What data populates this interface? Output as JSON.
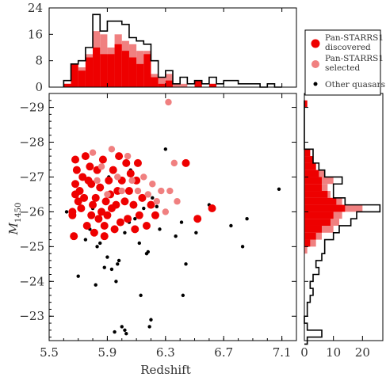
{
  "chart_data": [
    {
      "id": "top_histogram",
      "type": "bar",
      "xlabel": "",
      "ylabel": "",
      "xlim": [
        5.5,
        7.2
      ],
      "ylim": [
        0,
        24
      ],
      "yticks": [
        "0",
        "8",
        "16",
        "24"
      ],
      "bin_width": 0.05,
      "bin_left_edges": [
        5.6,
        5.65,
        5.7,
        5.75,
        5.8,
        5.85,
        5.9,
        5.95,
        6.0,
        6.05,
        6.1,
        6.15,
        6.2,
        6.25,
        6.3,
        6.35,
        6.4,
        6.45,
        6.5,
        6.55,
        6.6,
        6.65,
        6.7,
        6.75,
        6.8,
        6.85,
        6.9,
        6.95,
        7.0,
        7.05
      ],
      "series": [
        {
          "name": "Pan-STARRS1 discovered",
          "color": "#ee0000",
          "values": [
            1,
            7,
            5,
            9,
            12,
            10,
            10,
            13,
            11,
            9,
            7,
            10,
            3,
            1,
            2,
            0,
            0,
            0,
            2,
            0,
            1,
            0,
            0,
            0,
            0,
            0,
            0,
            0,
            0,
            0
          ]
        },
        {
          "name": "Pan-STARRS1 selected",
          "color": "#f08080",
          "values": [
            1,
            7,
            6,
            10,
            17,
            16,
            12,
            16,
            14,
            13,
            11,
            11,
            4,
            3,
            4,
            1,
            1,
            0,
            2,
            0,
            1,
            0,
            0,
            0,
            0,
            0,
            0,
            0,
            0,
            0
          ]
        },
        {
          "name": "Total",
          "color": "#000000",
          "values": [
            2,
            7,
            8,
            12,
            22,
            17,
            20,
            20,
            19,
            15,
            14,
            13,
            8,
            3,
            5,
            1,
            3,
            1,
            2,
            1,
            3,
            1,
            2,
            2,
            1,
            1,
            1,
            0,
            1,
            0
          ]
        }
      ]
    },
    {
      "id": "scatter",
      "type": "scatter",
      "xlabel": "Redshift",
      "ylabel": "M",
      "ylabel_subscript": "1450",
      "xlim": [
        5.5,
        7.2
      ],
      "ylim": [
        -22.3,
        -29.4
      ],
      "xticks": [
        "5.5",
        "5.9",
        "6.3",
        "6.7",
        "7.1"
      ],
      "yticks": [
        "−23",
        "−24",
        "−25",
        "−26",
        "−27",
        "−28",
        "−29"
      ],
      "series": [
        {
          "name": "Pan-STARRS1 discovered",
          "color": "#ee0000",
          "marker": "large-circle",
          "points": [
            [
              5.66,
              -25.9
            ],
            [
              5.66,
              -26.0
            ],
            [
              5.67,
              -25.3
            ],
            [
              5.68,
              -26.8
            ],
            [
              5.68,
              -27.5
            ],
            [
              5.69,
              -27.2
            ],
            [
              5.7,
              -26.3
            ],
            [
              5.71,
              -26.6
            ],
            [
              5.72,
              -26.1
            ],
            [
              5.73,
              -27.0
            ],
            [
              5.74,
              -26.4
            ],
            [
              5.75,
              -27.6
            ],
            [
              5.76,
              -25.6
            ],
            [
              5.77,
              -26.9
            ],
            [
              5.78,
              -27.3
            ],
            [
              5.79,
              -25.9
            ],
            [
              5.8,
              -26.2
            ],
            [
              5.81,
              -25.4
            ],
            [
              5.82,
              -26.4
            ],
            [
              5.83,
              -27.2
            ],
            [
              5.84,
              -25.8
            ],
            [
              5.85,
              -26.7
            ],
            [
              5.86,
              -26.0
            ],
            [
              5.87,
              -27.5
            ],
            [
              5.88,
              -25.6
            ],
            [
              5.89,
              -26.3
            ],
            [
              5.9,
              -25.9
            ],
            [
              5.91,
              -26.9
            ],
            [
              5.92,
              -26.5
            ],
            [
              5.93,
              -26.1
            ],
            [
              5.94,
              -27.2
            ],
            [
              5.95,
              -25.5
            ],
            [
              5.96,
              -26.2
            ],
            [
              5.97,
              -26.6
            ],
            [
              5.98,
              -27.6
            ],
            [
              5.99,
              -25.7
            ],
            [
              6.0,
              -26.9
            ],
            [
              6.02,
              -26.3
            ],
            [
              6.03,
              -27.4
            ],
            [
              6.04,
              -25.8
            ],
            [
              6.05,
              -26.6
            ],
            [
              6.06,
              -27.1
            ],
            [
              6.08,
              -26.2
            ],
            [
              6.09,
              -25.5
            ],
            [
              6.1,
              -26.9
            ],
            [
              6.11,
              -27.4
            ],
            [
              6.12,
              -25.9
            ],
            [
              6.14,
              -26.4
            ],
            [
              6.17,
              -25.6
            ],
            [
              6.2,
              -26.2
            ],
            [
              6.23,
              -25.9
            ],
            [
              6.52,
              -25.8
            ],
            [
              6.62,
              -26.1
            ],
            [
              6.44,
              -27.4
            ],
            [
              5.68,
              -26.5
            ],
            [
              5.79,
              -26.8
            ],
            [
              5.88,
              -25.3
            ]
          ]
        },
        {
          "name": "Pan-STARRS1 selected",
          "color": "#f08080",
          "marker": "large-circle",
          "points": [
            [
              5.8,
              -27.7
            ],
            [
              5.83,
              -26.9
            ],
            [
              5.86,
              -27.3
            ],
            [
              5.9,
              -26.5
            ],
            [
              5.93,
              -27.8
            ],
            [
              5.97,
              -27.0
            ],
            [
              6.0,
              -26.6
            ],
            [
              6.04,
              -27.6
            ],
            [
              6.07,
              -26.9
            ],
            [
              6.11,
              -26.6
            ],
            [
              6.15,
              -27.0
            ],
            [
              6.18,
              -26.5
            ],
            [
              6.21,
              -26.8
            ],
            [
              6.24,
              -26.3
            ],
            [
              6.27,
              -26.6
            ],
            [
              6.3,
              -26.0
            ],
            [
              6.33,
              -26.6
            ],
            [
              6.36,
              -27.4
            ],
            [
              6.32,
              -29.15
            ],
            [
              6.38,
              -26.3
            ]
          ]
        },
        {
          "name": "Other quasars",
          "color": "#000000",
          "marker": "dot",
          "points": [
            [
              5.62,
              -26.0
            ],
            [
              5.7,
              -24.15
            ],
            [
              5.75,
              -25.2
            ],
            [
              5.78,
              -25.5
            ],
            [
              5.8,
              -26.1
            ],
            [
              5.82,
              -23.9
            ],
            [
              5.83,
              -25.0
            ],
            [
              5.85,
              -25.1
            ],
            [
              5.88,
              -24.4
            ],
            [
              5.9,
              -24.7
            ],
            [
              5.91,
              -27.0
            ],
            [
              5.92,
              -26.5
            ],
            [
              5.93,
              -24.35
            ],
            [
              5.95,
              -22.55
            ],
            [
              5.96,
              -24.0
            ],
            [
              5.97,
              -24.5
            ],
            [
              5.98,
              -24.6
            ],
            [
              6.0,
              -22.7
            ],
            [
              6.02,
              -22.6
            ],
            [
              6.02,
              -25.4
            ],
            [
              6.03,
              -22.5
            ],
            [
              6.05,
              -25.7
            ],
            [
              6.06,
              -27.2
            ],
            [
              6.09,
              -25.8
            ],
            [
              6.12,
              -25.1
            ],
            [
              6.13,
              -23.6
            ],
            [
              6.15,
              -26.1
            ],
            [
              6.17,
              -24.8
            ],
            [
              6.18,
              -24.85
            ],
            [
              6.19,
              -22.7
            ],
            [
              6.2,
              -22.9
            ],
            [
              6.21,
              -26.4
            ],
            [
              6.24,
              -26.15
            ],
            [
              6.26,
              -25.5
            ],
            [
              6.3,
              -27.8
            ],
            [
              6.37,
              -25.3
            ],
            [
              6.41,
              -25.7
            ],
            [
              6.42,
              -23.6
            ],
            [
              6.44,
              -24.5
            ],
            [
              6.51,
              -25.4
            ],
            [
              6.6,
              -26.2
            ],
            [
              6.75,
              -25.6
            ],
            [
              6.83,
              -25.0
            ],
            [
              6.86,
              -25.8
            ],
            [
              7.08,
              -26.65
            ]
          ]
        }
      ]
    },
    {
      "id": "right_histogram",
      "type": "bar",
      "orientation": "horizontal",
      "xlabel": "",
      "ylabel": "",
      "xlim": [
        0,
        27
      ],
      "xticks": [
        "0",
        "10",
        "20"
      ],
      "ylim": [
        -22.3,
        -29.4
      ],
      "bin_height": 0.2,
      "bin_bottom_edges": [
        -29.2,
        -29.0,
        -28.8,
        -28.6,
        -28.4,
        -28.2,
        -28.0,
        -27.8,
        -27.6,
        -27.4,
        -27.2,
        -27.0,
        -26.8,
        -26.6,
        -26.4,
        -26.2,
        -26.0,
        -25.8,
        -25.6,
        -25.4,
        -25.2,
        -25.0,
        -24.8,
        -24.6,
        -24.4,
        -24.2,
        -24.0,
        -23.8,
        -23.6,
        -23.4,
        -23.2,
        -23.0,
        -22.8,
        -22.6,
        -22.4
      ],
      "series": [
        {
          "name": "Pan-STARRS1 discovered",
          "color": "#ee0000",
          "values": [
            1,
            0,
            0,
            0,
            0,
            0,
            0,
            2,
            3,
            4,
            5,
            6,
            6,
            8,
            11,
            14,
            10,
            9,
            6,
            4,
            2,
            0,
            0,
            0,
            0,
            0,
            0,
            0,
            0,
            0,
            0,
            0,
            0,
            0,
            0
          ]
        },
        {
          "name": "Pan-STARRS1 selected",
          "color": "#f08080",
          "values": [
            1,
            0,
            0,
            0,
            0,
            0,
            0,
            2,
            3,
            4,
            7,
            10,
            8,
            9,
            13,
            20,
            13,
            12,
            10,
            6,
            4,
            1,
            0,
            0,
            0,
            0,
            0,
            0,
            0,
            0,
            0,
            0,
            0,
            0,
            0
          ]
        },
        {
          "name": "Total",
          "color": "#000000",
          "values": [
            0,
            0,
            0,
            0,
            0,
            0,
            0,
            3,
            3,
            5,
            7,
            13,
            10,
            10,
            14,
            26,
            18,
            16,
            12,
            10,
            7,
            7,
            6,
            4,
            5,
            3,
            2,
            3,
            2,
            1,
            1,
            0,
            1,
            6,
            1
          ]
        }
      ]
    }
  ],
  "legend": {
    "placement": "top-right",
    "entries": [
      {
        "line1": "Pan-STARRS1",
        "line2": "discovered",
        "color": "#ee0000",
        "marker": "large-circle"
      },
      {
        "line1": "Pan-STARRS1",
        "line2": "selected",
        "color": "#f08080",
        "marker": "large-circle"
      },
      {
        "line1": "Other quasars",
        "line2": "",
        "color": "#000000",
        "marker": "dot"
      }
    ]
  }
}
